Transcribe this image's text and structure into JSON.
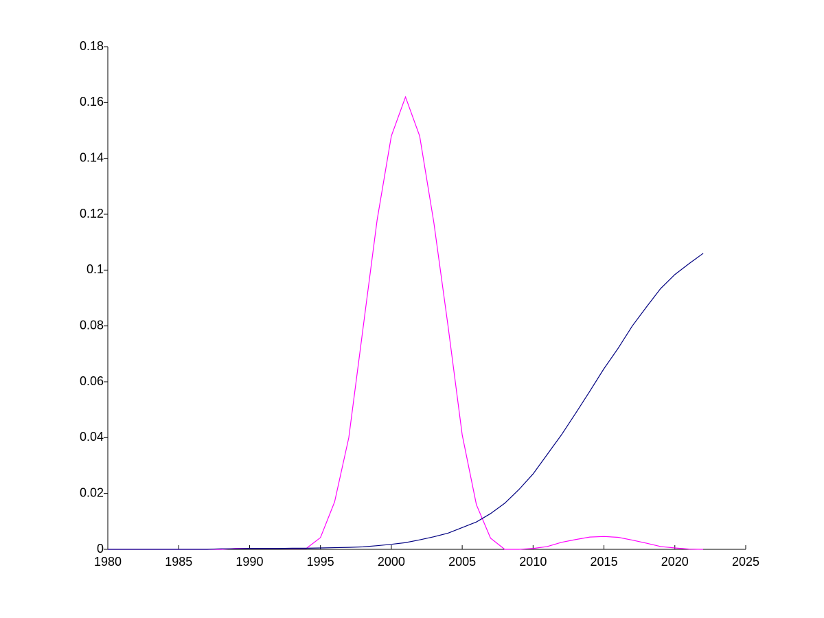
{
  "chart_data": {
    "type": "line",
    "x": [
      1980,
      1981,
      1982,
      1983,
      1984,
      1985,
      1986,
      1987,
      1988,
      1989,
      1990,
      1991,
      1992,
      1993,
      1994,
      1995,
      1996,
      1997,
      1998,
      1999,
      2000,
      2001,
      2002,
      2003,
      2004,
      2005,
      2006,
      2007,
      2008,
      2009,
      2010,
      2011,
      2012,
      2013,
      2014,
      2015,
      2016,
      2017,
      2018,
      2019,
      2020,
      2021,
      2022
    ],
    "series": [
      {
        "color": "#ff00ff",
        "values": [
          0,
          0,
          0,
          0,
          0,
          0,
          0,
          0,
          0,
          0.0003,
          0.0003,
          0.0003,
          0.0003,
          0.0003,
          0.0003,
          0.0042,
          0.017,
          0.04,
          0.079,
          0.118,
          0.148,
          0.162,
          0.148,
          0.117,
          0.08,
          0.041,
          0.016,
          0.004,
          0,
          0,
          0.0003,
          0.001,
          0.0025,
          0.0035,
          0.0044,
          0.0046,
          0.0043,
          0.0033,
          0.0022,
          0.001,
          0.0005,
          0.0001,
          0
        ]
      },
      {
        "color": "#000080",
        "values": [
          0,
          0,
          0,
          0,
          0,
          0,
          0,
          0,
          0.0002,
          0.0002,
          0.0003,
          0.0003,
          0.0003,
          0.0004,
          0.0004,
          0.0005,
          0.0006,
          0.0007,
          0.0009,
          0.0013,
          0.0018,
          0.0024,
          0.0034,
          0.0045,
          0.0058,
          0.0078,
          0.0098,
          0.0128,
          0.0165,
          0.0214,
          0.027,
          0.034,
          0.041,
          0.0487,
          0.0566,
          0.0647,
          0.072,
          0.08,
          0.0868,
          0.0934,
          0.0984,
          0.1023,
          0.106
        ]
      }
    ],
    "xlim": [
      1980,
      2025
    ],
    "xticks": [
      1980,
      1985,
      1990,
      1995,
      2000,
      2005,
      2010,
      2015,
      2020,
      2025
    ],
    "ylim": [
      0,
      0.18
    ],
    "yticks": [
      0,
      0.02,
      0.04,
      0.06,
      0.08,
      0.1,
      0.12,
      0.14,
      0.16,
      0.18
    ],
    "grid": false
  }
}
